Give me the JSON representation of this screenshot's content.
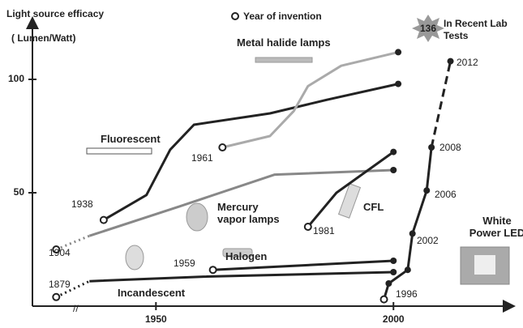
{
  "chart_data": {
    "type": "line",
    "title": "Light source efficacy",
    "ylabel": "( Lumen/Watt)",
    "legend": "Year of invention",
    "xlim": [
      1924,
      2023
    ],
    "ylim": [
      0,
      125
    ],
    "xticks": [
      1950,
      2000
    ],
    "yticks": [
      50,
      100
    ],
    "series": [
      {
        "name": "Incandescent",
        "color": "#222222",
        "start_style": "dotted",
        "x": [
          1929,
          1936,
          1960,
          2000
        ],
        "y": [
          4,
          11,
          13,
          15
        ]
      },
      {
        "name": "Halogen",
        "color": "#222222",
        "x": [
          1962,
          2000
        ],
        "y": [
          16,
          20
        ]
      },
      {
        "name": "Mercury vapor lamps",
        "color": "#888888",
        "start_style": "dotted",
        "x": [
          1929,
          1936,
          1955,
          1975,
          2000
        ],
        "y": [
          25,
          31,
          44,
          58,
          60
        ]
      },
      {
        "name": "Fluorescent",
        "color": "#222222",
        "x": [
          1939,
          1948,
          1953,
          1958,
          1974,
          1986,
          2001
        ],
        "y": [
          38,
          49,
          69,
          80,
          85,
          91,
          98
        ]
      },
      {
        "name": "Metal halide lamps",
        "color": "#aaaaaa",
        "x": [
          1964,
          1974,
          1979,
          1982,
          1989,
          2001
        ],
        "y": [
          70,
          75,
          86,
          97,
          106,
          112
        ]
      },
      {
        "name": "CFL",
        "color": "#222222",
        "x": [
          1982,
          1988,
          2000
        ],
        "y": [
          35,
          50,
          68
        ]
      },
      {
        "name": "White Power LED",
        "color": "#222222",
        "end_style": "dashed",
        "x": [
          1998,
          1999,
          2003,
          2004,
          2007,
          2008,
          2012
        ],
        "y": [
          3,
          10,
          16,
          32,
          51,
          70,
          108
        ]
      }
    ],
    "annotations": [
      "1879",
      "1904",
      "1938",
      "1959",
      "1961",
      "1981",
      "1996",
      "2002",
      "2006",
      "2008",
      "2012"
    ],
    "callout": {
      "value": 136,
      "text": "In Recent Lab Tests"
    }
  }
}
